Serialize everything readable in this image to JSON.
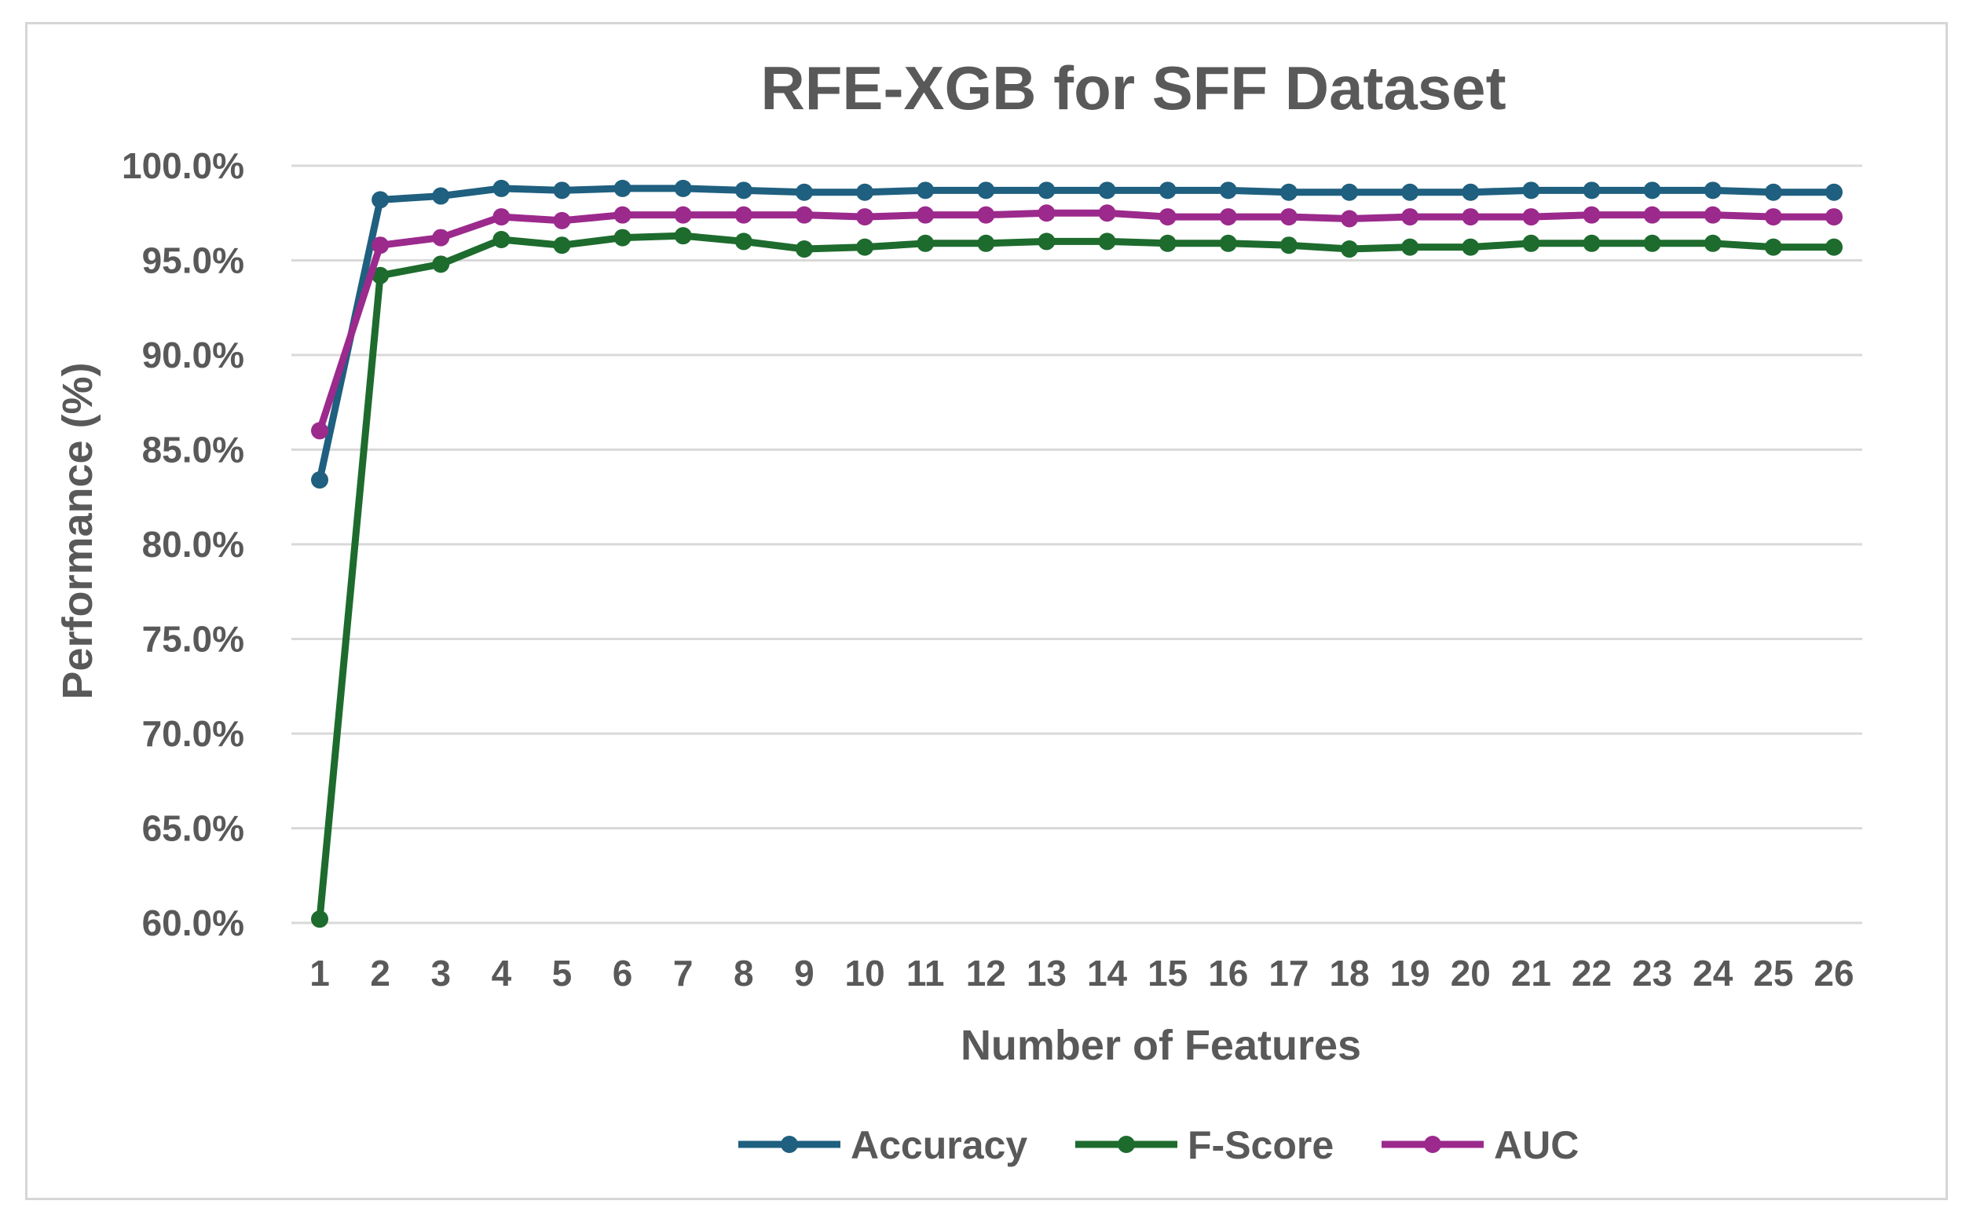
{
  "chart_data": {
    "type": "line",
    "title": "RFE-XGB for SFF Dataset",
    "xlabel": "Number of Features",
    "ylabel": "Performance  (%)",
    "ylim": [
      60,
      100
    ],
    "y_tick_step": 5,
    "y_tick_labels": [
      "60.0%",
      "65.0%",
      "70.0%",
      "75.0%",
      "80.0%",
      "85.0%",
      "90.0%",
      "95.0%",
      "100.0%"
    ],
    "categories": [
      "1",
      "2",
      "3",
      "4",
      "5",
      "6",
      "7",
      "8",
      "9",
      "10",
      "11",
      "12",
      "13",
      "14",
      "15",
      "16",
      "17",
      "18",
      "19",
      "20",
      "21",
      "22",
      "23",
      "24",
      "25",
      "26"
    ],
    "grid": true,
    "legend_position": "bottom",
    "series": [
      {
        "name": "Accuracy",
        "color": "#1f5f7f",
        "values": [
          83.4,
          98.2,
          98.4,
          98.8,
          98.7,
          98.8,
          98.8,
          98.7,
          98.6,
          98.6,
          98.7,
          98.7,
          98.7,
          98.7,
          98.7,
          98.7,
          98.6,
          98.6,
          98.6,
          98.6,
          98.7,
          98.7,
          98.7,
          98.7,
          98.6,
          98.6
        ]
      },
      {
        "name": "F-Score",
        "color": "#1e6b2e",
        "values": [
          60.2,
          94.2,
          94.8,
          96.1,
          95.8,
          96.2,
          96.3,
          96.0,
          95.6,
          95.7,
          95.9,
          95.9,
          96.0,
          96.0,
          95.9,
          95.9,
          95.8,
          95.6,
          95.7,
          95.7,
          95.9,
          95.9,
          95.9,
          95.9,
          95.7,
          95.7
        ]
      },
      {
        "name": "AUC",
        "color": "#9b2a8c",
        "values": [
          86.0,
          95.8,
          96.2,
          97.3,
          97.1,
          97.4,
          97.4,
          97.4,
          97.4,
          97.3,
          97.4,
          97.4,
          97.5,
          97.5,
          97.3,
          97.3,
          97.3,
          97.2,
          97.3,
          97.3,
          97.3,
          97.4,
          97.4,
          97.4,
          97.3,
          97.3
        ]
      }
    ]
  }
}
